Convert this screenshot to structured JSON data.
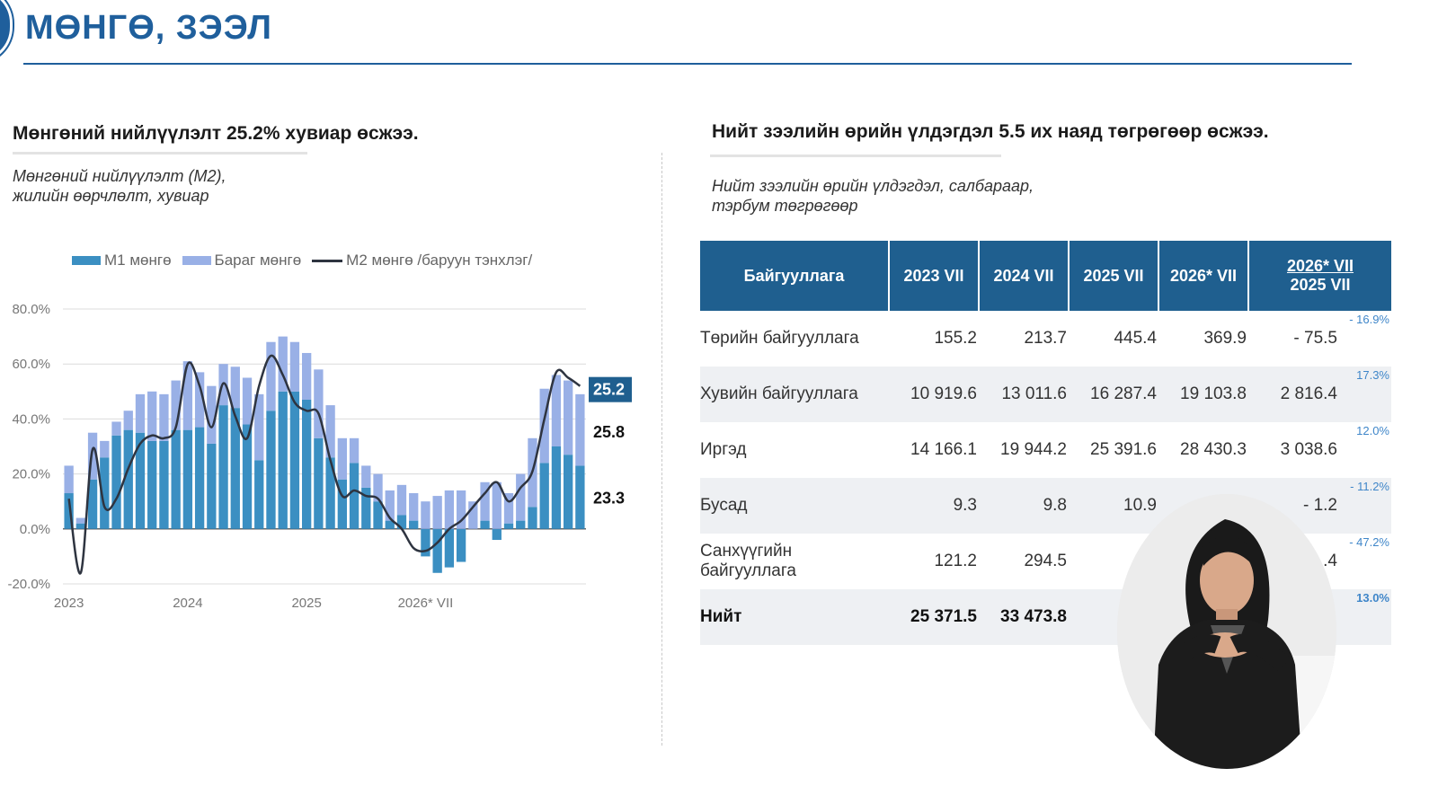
{
  "page": {
    "title": "МӨНГӨ, ЗЭЭЛ"
  },
  "left": {
    "heading": "Мөнгөний нийлүүлэлт 25.2% хувиар өсжээ.",
    "subtitle_line1": "Мөнгөний нийлүүлэлт (M2),",
    "subtitle_line2": "жилийн өөрчлөлт, хувиар"
  },
  "right": {
    "heading": "Нийт зээлийн өрийн үлдэгдэл 5.5 их наяд төгрөгөөр өсжээ.",
    "subtitle_line1": "Нийт зээлийн өрийн үлдэгдэл, салбараар,",
    "subtitle_line2": "тэрбум төгрөгөөр"
  },
  "chart_data": {
    "type": "bar",
    "legend": [
      "M1 мөнгө",
      "Бараг мөнгө",
      "M2 мөнгө /баруун тэнхлэг/"
    ],
    "x_tick_labels": [
      "2023",
      "2024",
      "2025",
      "2026* VII"
    ],
    "x_tick_index": [
      0,
      10,
      20,
      30
    ],
    "y_tick_labels": [
      "80.0%",
      "60.0%",
      "40.0%",
      "20.0%",
      "0.0%",
      "-20.0%"
    ],
    "ylim": [
      -20,
      80
    ],
    "colors": {
      "m1": "#3b8fc2",
      "quasi": "#99b0e6",
      "m2": "#2e3440",
      "label_box": "#1f5f8f"
    },
    "series": [
      {
        "name": "M1 мөнгө",
        "type": "bar",
        "values": [
          13,
          2,
          18,
          26,
          34,
          36,
          35,
          32,
          32,
          36,
          36,
          37,
          31,
          45,
          44,
          38,
          25,
          43,
          50,
          50,
          47,
          33,
          26,
          18,
          24,
          15,
          10,
          3,
          5,
          3,
          -10,
          -16,
          -14,
          -12,
          0,
          3,
          -4,
          2,
          3,
          8,
          24,
          30,
          27,
          23
        ]
      },
      {
        "name": "Бараг мөнгө",
        "type": "bar",
        "values": [
          10,
          2,
          17,
          6,
          5,
          7,
          14,
          18,
          17,
          18,
          25,
          20,
          21,
          15,
          15,
          17,
          24,
          25,
          20,
          18,
          17,
          25,
          19,
          15,
          9,
          8,
          10,
          11,
          11,
          10,
          10,
          12,
          14,
          14,
          10,
          14,
          17,
          11,
          17,
          25,
          27,
          26,
          27,
          26
        ]
      },
      {
        "name": "M2 мөнгө /баруун тэнхлэг/",
        "type": "line",
        "values": [
          11,
          -16,
          29,
          8,
          11,
          22,
          31,
          34,
          33,
          37,
          60,
          52,
          37,
          53,
          41,
          33,
          52,
          63,
          56,
          46,
          43,
          42,
          25,
          12,
          14,
          12,
          11,
          4,
          0,
          -7,
          -8,
          -5,
          0,
          3,
          8,
          13,
          17,
          10,
          15,
          21,
          40,
          57,
          55,
          52
        ]
      }
    ],
    "end_labels": [
      "25.2",
      "25.8",
      "23.3"
    ]
  },
  "table": {
    "headers": [
      "Байгууллага",
      "2023 VII",
      "2024 VII",
      "2025 VII",
      "2026* VII"
    ],
    "change_header_top": "2026* VII",
    "change_header_bottom": "2025   VII",
    "rows": [
      {
        "org": "Төрийн байгууллага",
        "v2023": "155.2",
        "v2024": "213.7",
        "v2025": "445.4",
        "v2026": "369.9",
        "change": "- 75.5",
        "pct": "- 16.9%"
      },
      {
        "org": "Хувийн байгууллага",
        "v2023": "10 919.6",
        "v2024": "13 011.6",
        "v2025": "16 287.4",
        "v2026": "19 103.8",
        "change": "2 816.4",
        "pct": "17.3%"
      },
      {
        "org": "Иргэд",
        "v2023": "14 166.1",
        "v2024": "19 944.2",
        "v2025": "25 391.6",
        "v2026": "28 430.3",
        "change": "3 038.6",
        "pct": "12.0%"
      },
      {
        "org": "Бусад",
        "v2023": "9.3",
        "v2024": "9.8",
        "v2025": "10.9",
        "v2026": "",
        "change": "- 1.2",
        "pct": "- 11.2%"
      },
      {
        "org_line1": "Санхүүгийн",
        "org_line2": "байгууллага",
        "v2023": "121.2",
        "v2024": "294.5",
        "v2025": "52",
        "v2026": "",
        "change": ".4",
        "pct": "- 47.2%"
      },
      {
        "org": "Нийт",
        "v2023": "25 371.5",
        "v2024": "33 473.8",
        "v2025": "42 6",
        "v2026": "",
        "change": "",
        "pct": "13.0%"
      }
    ]
  }
}
